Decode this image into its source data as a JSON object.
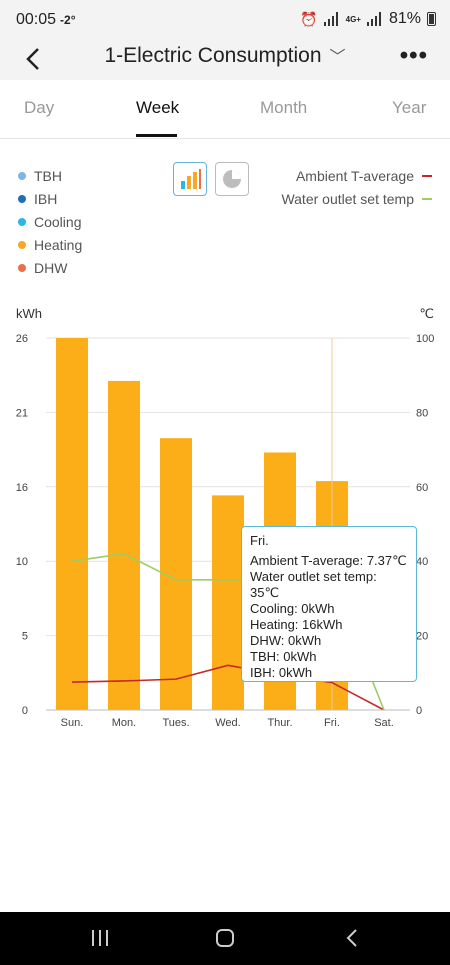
{
  "status": {
    "time": "00:05",
    "temperature": "-2°",
    "network": "4G+",
    "battery": "81%"
  },
  "header": {
    "title": "1-Electric Consumption"
  },
  "tabs": [
    {
      "label": "Day",
      "active": false
    },
    {
      "label": "Week",
      "active": true
    },
    {
      "label": "Month",
      "active": false
    },
    {
      "label": "Year",
      "active": false
    }
  ],
  "legend": {
    "items": [
      {
        "label": "TBH",
        "color": "#7fb5e0"
      },
      {
        "label": "IBH",
        "color": "#1e6fb8"
      },
      {
        "label": "Cooling",
        "color": "#2bb6e6"
      },
      {
        "label": "Heating",
        "color": "#f9a825"
      },
      {
        "label": "DHW",
        "color": "#e8704a"
      }
    ],
    "lines": [
      {
        "label": "Ambient T-average",
        "color": "#c62828"
      },
      {
        "label": "Water outlet set temp",
        "color": "#9ccc65"
      }
    ]
  },
  "chart_data": {
    "type": "bar",
    "left_unit": "kWh",
    "right_unit": "℃",
    "categories": [
      "Sun.",
      "Mon.",
      "Tues.",
      "Wed.",
      "Thur.",
      "Fri.",
      "Sat."
    ],
    "left_ticks": [
      "0",
      "5",
      "10",
      "16",
      "21",
      "26"
    ],
    "right_ticks": [
      "0",
      "20",
      "40",
      "60",
      "80",
      "100"
    ],
    "ylim_left": [
      0,
      26
    ],
    "ylim_right": [
      0,
      100
    ],
    "series": [
      {
        "name": "Heating",
        "values": [
          26,
          23,
          19,
          15,
          18,
          16,
          0
        ]
      },
      {
        "name": "Ambient T-average",
        "values": [
          7.5,
          7.8,
          8.3,
          12,
          9.5,
          7.37,
          0
        ]
      },
      {
        "name": "Water outlet set temp",
        "values": [
          40,
          42,
          35,
          35,
          35,
          35,
          0
        ]
      }
    ],
    "selected_index": 5
  },
  "tooltip": {
    "title": "Fri.",
    "lines": [
      "Ambient T-average: 7.37℃",
      "Water outlet set temp: 35℃",
      "Cooling: 0kWh",
      "Heating: 16kWh",
      "DHW: 0kWh",
      "TBH: 0kWh",
      "IBH: 0kWh"
    ]
  },
  "icons": {
    "back": "chevron-left-icon",
    "more": "more-dots-icon",
    "bar_chart": "bar-chart-icon",
    "pie_chart": "pie-chart-icon"
  }
}
